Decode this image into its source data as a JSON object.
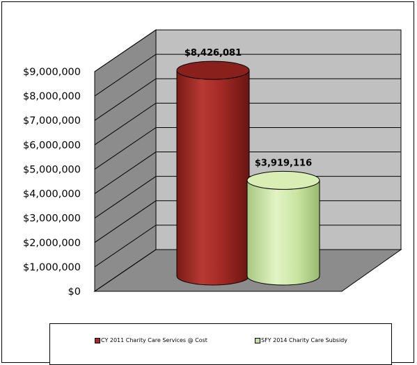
{
  "chart_data": {
    "type": "bar",
    "style": "3d-cylinder",
    "title": "",
    "xlabel": "",
    "ylabel": "",
    "ylim": [
      0,
      9000000
    ],
    "ytick_labels": [
      "$0",
      "$1,000,000",
      "$2,000,000",
      "$3,000,000",
      "$4,000,000",
      "$5,000,000",
      "$6,000,000",
      "$7,000,000",
      "$8,000,000",
      "$9,000,000"
    ],
    "grid": true,
    "legend_position": "bottom",
    "series": [
      {
        "name": "CY 2011 Charity Care Services @ Cost",
        "value": 8426081,
        "label": "$8,426,081",
        "color": "#a52a2a"
      },
      {
        "name": "SFY 2014 Charity Care Subsidy",
        "value": 3919116,
        "label": "$3,919,116",
        "color": "#c4e29a"
      }
    ]
  }
}
